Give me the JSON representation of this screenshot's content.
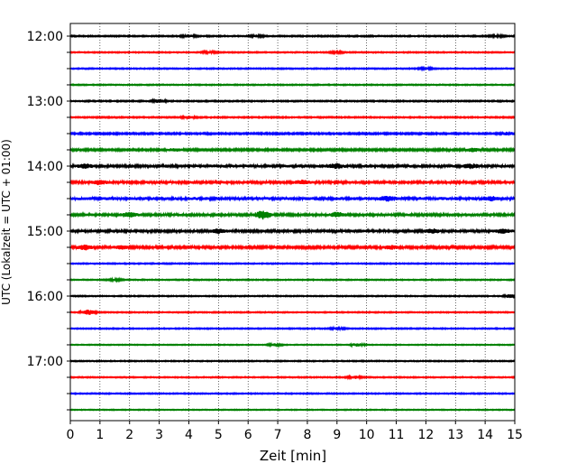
{
  "chart_data": {
    "type": "line",
    "title": "",
    "xlabel": "Zeit  [min]",
    "ylabel": "UTC (Lokalzeit = UTC + 01:00)",
    "xlim": [
      0,
      15
    ],
    "x_ticks": [
      "0",
      "1",
      "2",
      "3",
      "4",
      "5",
      "6",
      "7",
      "8",
      "9",
      "10",
      "11",
      "12",
      "13",
      "14",
      "15"
    ],
    "y_ticks": [
      "12:00",
      "13:00",
      "14:00",
      "15:00",
      "16:00",
      "17:00"
    ],
    "row_interval_min": 15,
    "grid": "vertical dotted lines at each minute",
    "trace_colors": [
      "#000000",
      "#ff0000",
      "#0000ff",
      "#008000"
    ],
    "rows": [
      {
        "start": "12:00",
        "amplitude": 0.35,
        "events": [
          {
            "t": 4.0,
            "a": 0.7
          },
          {
            "t": 6.3,
            "a": 0.5
          },
          {
            "t": 14.4,
            "a": 0.5
          }
        ]
      },
      {
        "start": "12:15",
        "amplitude": 0.3,
        "events": [
          {
            "t": 4.7,
            "a": 0.6
          },
          {
            "t": 9.0,
            "a": 0.5
          }
        ]
      },
      {
        "start": "12:30",
        "amplitude": 0.3,
        "events": [
          {
            "t": 12.0,
            "a": 0.5
          }
        ]
      },
      {
        "start": "12:45",
        "amplitude": 0.3,
        "events": []
      },
      {
        "start": "13:00",
        "amplitude": 0.35,
        "events": [
          {
            "t": 3.0,
            "a": 0.9
          }
        ]
      },
      {
        "start": "13:15",
        "amplitude": 0.35,
        "events": [
          {
            "t": 4.0,
            "a": 0.7
          }
        ]
      },
      {
        "start": "13:30",
        "amplitude": 0.45,
        "events": [
          {
            "t": 14.8,
            "a": 0.9
          }
        ]
      },
      {
        "start": "13:45",
        "amplitude": 0.55,
        "events": [
          {
            "t": 13.6,
            "a": 1.0
          },
          {
            "t": 3.5,
            "a": 0.7
          }
        ]
      },
      {
        "start": "14:00",
        "amplitude": 0.8,
        "events": [
          {
            "t": 9.0,
            "a": 1.1
          },
          {
            "t": 13.5,
            "a": 1.0
          },
          {
            "t": 0.5,
            "a": 0.9
          }
        ]
      },
      {
        "start": "14:15",
        "amplitude": 0.75,
        "events": [
          {
            "t": 1.0,
            "a": 1.0
          },
          {
            "t": 7.8,
            "a": 0.9
          }
        ]
      },
      {
        "start": "14:30",
        "amplitude": 0.85,
        "events": [
          {
            "t": 10.7,
            "a": 1.2
          },
          {
            "t": 14.2,
            "a": 1.0
          }
        ]
      },
      {
        "start": "14:45",
        "amplitude": 0.75,
        "events": [
          {
            "t": 2.0,
            "a": 1.2
          },
          {
            "t": 6.5,
            "a": 2.4
          },
          {
            "t": 9.0,
            "a": 1.2
          }
        ]
      },
      {
        "start": "15:00",
        "amplitude": 0.75,
        "events": [
          {
            "t": 5.0,
            "a": 1.0
          },
          {
            "t": 12.2,
            "a": 1.0
          },
          {
            "t": 14.6,
            "a": 1.0
          }
        ]
      },
      {
        "start": "15:15",
        "amplitude": 0.65,
        "events": [
          {
            "t": 0.5,
            "a": 1.3
          },
          {
            "t": 10.8,
            "a": 1.0
          },
          {
            "t": 1.7,
            "a": 0.9
          }
        ]
      },
      {
        "start": "15:30",
        "amplitude": 0.3,
        "events": []
      },
      {
        "start": "15:45",
        "amplitude": 0.3,
        "events": [
          {
            "t": 1.5,
            "a": 0.5
          }
        ]
      },
      {
        "start": "16:00",
        "amplitude": 0.3,
        "events": [
          {
            "t": 14.9,
            "a": 1.2
          }
        ]
      },
      {
        "start": "16:15",
        "amplitude": 0.3,
        "events": [
          {
            "t": 0.6,
            "a": 1.5
          }
        ]
      },
      {
        "start": "16:30",
        "amplitude": 0.3,
        "events": [
          {
            "t": 9.0,
            "a": 0.6
          }
        ]
      },
      {
        "start": "16:45",
        "amplitude": 0.25,
        "events": [
          {
            "t": 6.9,
            "a": 0.7
          },
          {
            "t": 9.7,
            "a": 0.9
          }
        ]
      },
      {
        "start": "17:00",
        "amplitude": 0.3,
        "events": []
      },
      {
        "start": "17:15",
        "amplitude": 0.3,
        "events": [
          {
            "t": 9.6,
            "a": 0.8
          }
        ]
      },
      {
        "start": "17:30",
        "amplitude": 0.3,
        "events": []
      },
      {
        "start": "17:45",
        "amplitude": 0.25,
        "events": []
      }
    ]
  }
}
